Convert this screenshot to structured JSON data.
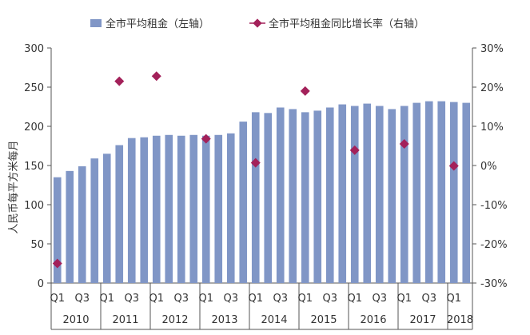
{
  "chart_data": {
    "type": "bar",
    "legend": {
      "position": "top",
      "bar_label": "全市平均租金（左轴）",
      "line_label": "全市平均租金同比增长率（右轴）"
    },
    "ylabel": "人民币每平方米每月",
    "ylim": [
      0,
      300
    ],
    "y_ticks": [
      "0",
      "50",
      "100",
      "150",
      "200",
      "250",
      "300"
    ],
    "y2lim": [
      -0.3,
      0.3
    ],
    "y2_ticks": [
      "-30%",
      "-20%",
      "-10%",
      "0%",
      "10%",
      "20%",
      "30%"
    ],
    "grid": false,
    "quarters": [
      "2010Q1",
      "2010Q2",
      "2010Q3",
      "2010Q4",
      "2011Q1",
      "2011Q2",
      "2011Q3",
      "2011Q4",
      "2012Q1",
      "2012Q2",
      "2012Q3",
      "2012Q4",
      "2013Q1",
      "2013Q2",
      "2013Q3",
      "2013Q4",
      "2014Q1",
      "2014Q2",
      "2014Q3",
      "2014Q4",
      "2015Q1",
      "2015Q2",
      "2015Q3",
      "2015Q4",
      "2016Q1",
      "2016Q2",
      "2016Q3",
      "2016Q4",
      "2017Q1",
      "2017Q2",
      "2017Q3",
      "2017Q4",
      "2018Q1",
      "2018Q2"
    ],
    "quarter_ticks": [
      "Q1",
      "",
      "Q3",
      "",
      "Q1",
      "",
      "Q3",
      "",
      "Q1",
      "",
      "Q3",
      "",
      "Q1",
      "",
      "Q3",
      "",
      "Q1",
      "",
      "Q3",
      "",
      "Q1",
      "",
      "Q3",
      "",
      "Q1",
      "",
      "Q3",
      "",
      "Q1",
      "",
      "Q3",
      "",
      "Q1",
      ""
    ],
    "years": [
      "2010",
      "2011",
      "2012",
      "2013",
      "2014",
      "2015",
      "2016",
      "2017",
      "2018"
    ],
    "series": [
      {
        "name": "全市平均租金（左轴）",
        "axis": "left",
        "color": "#8096c6",
        "values": [
          135,
          143,
          149,
          159,
          165,
          176,
          185,
          186,
          188,
          189,
          188,
          189,
          188,
          189,
          191,
          206,
          218,
          217,
          224,
          222,
          218,
          220,
          224,
          228,
          226,
          229,
          226,
          222,
          226,
          230,
          232,
          232,
          231,
          230
        ]
      },
      {
        "name": "全市平均租金同比增长率（右轴）",
        "axis": "right",
        "color": "#a3215a",
        "points": [
          {
            "quarter": "2010Q1",
            "value": -0.25
          },
          {
            "quarter": "2011Q2",
            "value": 0.215
          },
          {
            "quarter": "2012Q1",
            "value": 0.228
          },
          {
            "quarter": "2013Q1",
            "value": 0.068
          },
          {
            "quarter": "2014Q1",
            "value": 0.007
          },
          {
            "quarter": "2015Q1",
            "value": 0.19
          },
          {
            "quarter": "2016Q1",
            "value": 0.039
          },
          {
            "quarter": "2017Q1",
            "value": 0.055
          },
          {
            "quarter": "2018Q1",
            "value": -0.001
          }
        ]
      }
    ]
  }
}
